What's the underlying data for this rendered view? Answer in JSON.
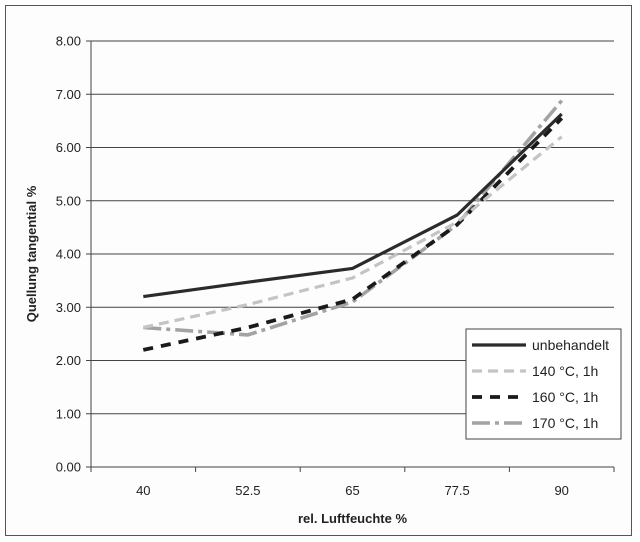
{
  "chart_data": {
    "type": "line",
    "title": "",
    "xlabel": "rel. Luftfeuchte %",
    "ylabel": "Quellung tangential %",
    "categories": [
      "40",
      "52.5",
      "65",
      "77.5",
      "90"
    ],
    "ylim": [
      0,
      8
    ],
    "yticks": [
      "0.00",
      "1.00",
      "2.00",
      "3.00",
      "4.00",
      "5.00",
      "6.00",
      "7.00",
      "8.00"
    ],
    "grid": true,
    "legend_position": "right",
    "series": [
      {
        "name": "unbehandelt",
        "values": [
          3.2,
          3.47,
          3.73,
          4.73,
          6.63
        ],
        "color": "#2b2b2b",
        "style": "solid"
      },
      {
        "name": "140 °C, 1h",
        "values": [
          2.62,
          3.05,
          3.55,
          4.6,
          6.2
        ],
        "color": "#c4c4c4",
        "style": "dashed-light"
      },
      {
        "name": "160 °C, 1h",
        "values": [
          2.2,
          2.62,
          3.15,
          4.55,
          6.55
        ],
        "color": "#1a1a1a",
        "style": "dashed-bold"
      },
      {
        "name": "170 °C, 1h",
        "values": [
          2.62,
          2.48,
          3.1,
          4.55,
          6.88
        ],
        "color": "#a3a3a3",
        "style": "dashed-medium"
      }
    ]
  }
}
